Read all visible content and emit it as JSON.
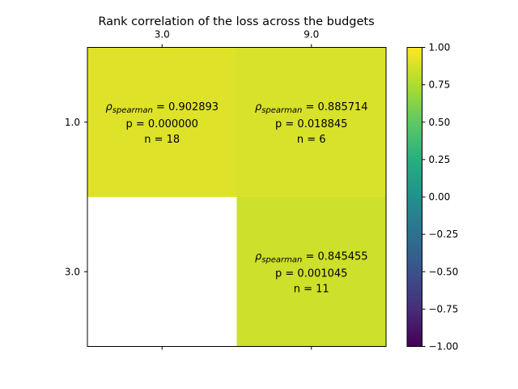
{
  "chart_data": {
    "type": "heatmap",
    "title": "Rank correlation of the loss across the budgets",
    "x_ticks": [
      "3.0",
      "9.0"
    ],
    "y_ticks": [
      "1.0",
      "3.0"
    ],
    "colorbar": {
      "colormap": "viridis",
      "vmin": -1.0,
      "vmax": 1.0,
      "ticks": [
        "1.00",
        "0.75",
        "0.50",
        "0.25",
        "0.00",
        "−0.25",
        "−0.50",
        "−0.75",
        "−1.00"
      ],
      "tick_values": [
        1.0,
        0.75,
        0.5,
        0.25,
        0.0,
        -0.25,
        -0.5,
        -0.75,
        -1.0
      ]
    },
    "cells": [
      {
        "row": 0,
        "col": 0,
        "value": 0.902893,
        "rho_label": "ρ",
        "rho_sub": "spearman",
        "rho_text": "= 0.902893",
        "p_text": "p = 0.000000",
        "n_text": "n = 18"
      },
      {
        "row": 0,
        "col": 1,
        "value": 0.885714,
        "rho_label": "ρ",
        "rho_sub": "spearman",
        "rho_text": "= 0.885714",
        "p_text": "p = 0.018845",
        "n_text": "n = 6"
      },
      {
        "row": 1,
        "col": 0,
        "value": null
      },
      {
        "row": 1,
        "col": 1,
        "value": 0.845455,
        "rho_label": "ρ",
        "rho_sub": "spearman",
        "rho_text": "= 0.845455",
        "p_text": "p = 0.001045",
        "n_text": "n = 11"
      }
    ]
  }
}
